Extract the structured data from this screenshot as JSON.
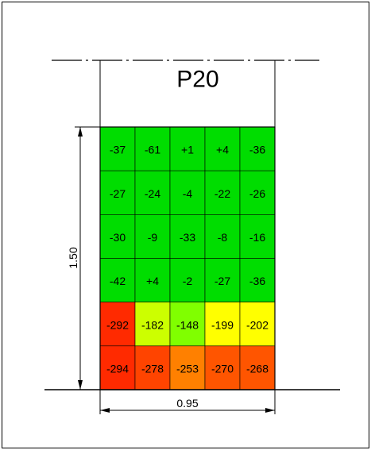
{
  "panel": {
    "label": "P20",
    "height_label": "1.50",
    "width_label": "0.95"
  },
  "grid": {
    "rows": [
      [
        "-37",
        "-61",
        "+1",
        "+4",
        "-36"
      ],
      [
        "-27",
        "-24",
        "-4",
        "-22",
        "-26"
      ],
      [
        "-30",
        "-9",
        "-33",
        "-8",
        "-16"
      ],
      [
        "-42",
        "+4",
        "-2",
        "-27",
        "-36"
      ],
      [
        "-292",
        "-182",
        "-148",
        "-199",
        "-202"
      ],
      [
        "-294",
        "-278",
        "-253",
        "-270",
        "-268"
      ]
    ],
    "colors": [
      [
        "#00dd00",
        "#00dd00",
        "#00dd00",
        "#00dd00",
        "#00dd00"
      ],
      [
        "#00dd00",
        "#00dd00",
        "#00dd00",
        "#00dd00",
        "#00dd00"
      ],
      [
        "#00dd00",
        "#00dd00",
        "#00dd00",
        "#00dd00",
        "#00dd00"
      ],
      [
        "#00dd00",
        "#00dd00",
        "#00dd00",
        "#00dd00",
        "#00dd00"
      ],
      [
        "#ff2a00",
        "#ccff00",
        "#80ff00",
        "#ffff00",
        "#ffff00"
      ],
      [
        "#ff2a00",
        "#ff4400",
        "#ff8000",
        "#ff5500",
        "#ff5500"
      ]
    ]
  }
}
